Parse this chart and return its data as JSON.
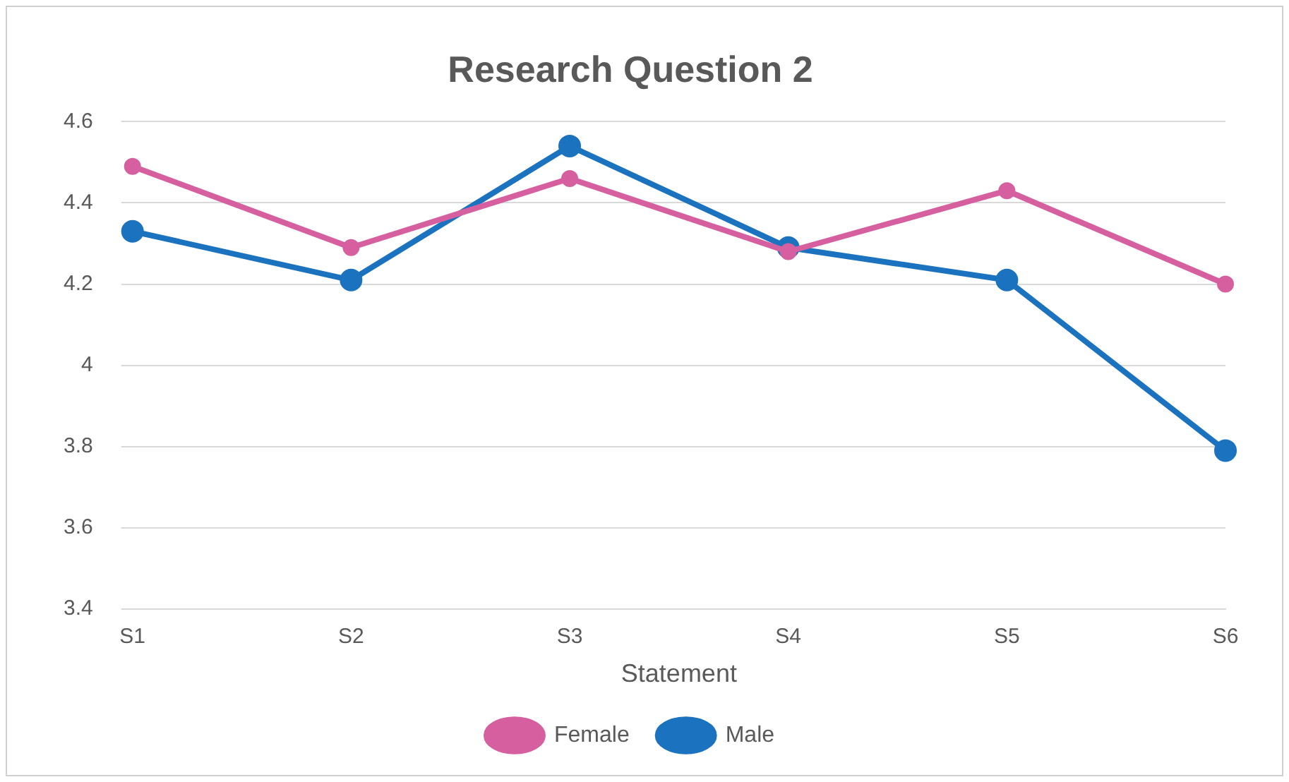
{
  "chart_data": {
    "type": "line",
    "title": "Research Question 2",
    "xlabel": "Statement",
    "categories": [
      "S1",
      "S2",
      "S3",
      "S4",
      "S5",
      "S6"
    ],
    "series": [
      {
        "name": "Female",
        "color": "#d65fa0",
        "values": [
          4.49,
          4.29,
          4.46,
          4.28,
          4.43,
          4.2
        ]
      },
      {
        "name": "Male",
        "color": "#1b72be",
        "values": [
          4.33,
          4.21,
          4.54,
          4.29,
          4.21,
          3.79
        ]
      }
    ],
    "ylim": [
      3.4,
      4.6
    ],
    "yticks": [
      3.4,
      3.6,
      3.8,
      4,
      4.2,
      4.4,
      4.6
    ],
    "grid": "y",
    "legend": "bottom",
    "marker": "circle",
    "line_style": "solid"
  }
}
